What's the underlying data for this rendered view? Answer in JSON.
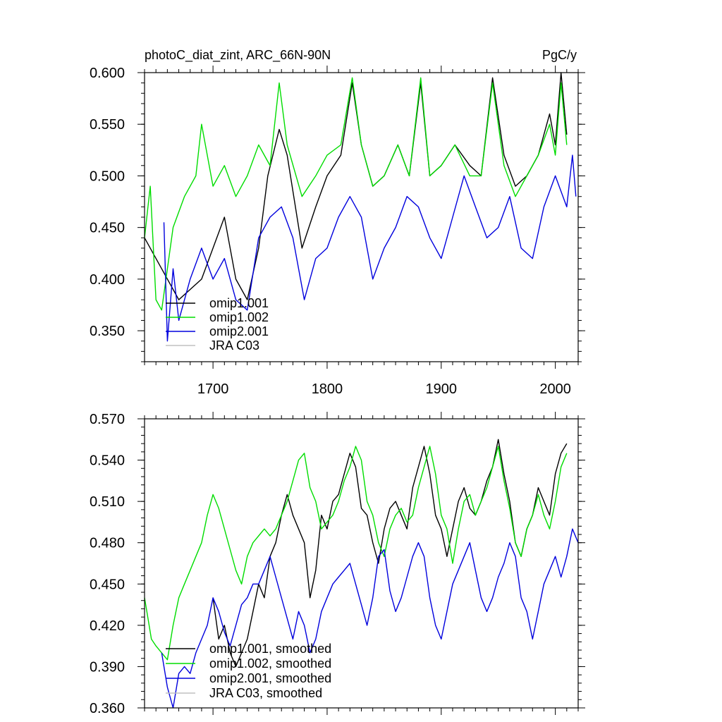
{
  "chart_data": [
    {
      "type": "line",
      "title": "photoC_diat_zint, ARC_66N-90N",
      "units": "PgC/y",
      "xlabel": "",
      "ylabel": "",
      "xlim": [
        1640,
        2020
      ],
      "ylim": [
        0.32,
        0.6
      ],
      "xticks": [
        1700,
        1800,
        1900,
        2000
      ],
      "xtick_labels": [
        "1700",
        "1800",
        "1900",
        "2000"
      ],
      "yticks": [
        0.35,
        0.4,
        0.45,
        0.5,
        0.55,
        0.6
      ],
      "ytick_labels": [
        "0.350",
        "0.400",
        "0.450",
        "0.500",
        "0.550",
        "0.600"
      ],
      "legend_position": "bottom-left",
      "series": [
        {
          "name": "omip1.001",
          "color": "#000000",
          "x": [
            1640,
            1655,
            1670,
            1690,
            1700,
            1710,
            1720,
            1730,
            1740,
            1748,
            1758,
            1765,
            1778,
            1790,
            1800,
            1812,
            1822,
            1830,
            1840,
            1850,
            1862,
            1872,
            1882,
            1890,
            1900,
            1912,
            1925,
            1935,
            1945,
            1955,
            1965,
            1975,
            1985,
            1995,
            2000,
            2005,
            2010
          ],
          "values": [
            0.44,
            0.41,
            0.38,
            0.4,
            0.43,
            0.46,
            0.4,
            0.38,
            0.43,
            0.5,
            0.545,
            0.52,
            0.43,
            0.47,
            0.5,
            0.52,
            0.59,
            0.53,
            0.49,
            0.5,
            0.53,
            0.5,
            0.59,
            0.5,
            0.51,
            0.53,
            0.51,
            0.5,
            0.595,
            0.52,
            0.49,
            0.5,
            0.52,
            0.56,
            0.53,
            0.6,
            0.54
          ]
        },
        {
          "name": "omip1.002",
          "color": "#00dd00",
          "x": [
            1640,
            1645,
            1650,
            1655,
            1665,
            1675,
            1685,
            1690,
            1700,
            1710,
            1720,
            1730,
            1740,
            1750,
            1758,
            1765,
            1778,
            1790,
            1800,
            1812,
            1822,
            1830,
            1840,
            1850,
            1862,
            1872,
            1882,
            1890,
            1900,
            1912,
            1925,
            1935,
            1945,
            1955,
            1965,
            1975,
            1985,
            1995,
            2000,
            2005,
            2010
          ],
          "values": [
            0.44,
            0.49,
            0.38,
            0.37,
            0.45,
            0.48,
            0.5,
            0.55,
            0.49,
            0.51,
            0.48,
            0.5,
            0.53,
            0.51,
            0.59,
            0.53,
            0.48,
            0.5,
            0.52,
            0.53,
            0.595,
            0.53,
            0.49,
            0.5,
            0.53,
            0.5,
            0.595,
            0.5,
            0.51,
            0.53,
            0.5,
            0.5,
            0.59,
            0.51,
            0.48,
            0.5,
            0.52,
            0.55,
            0.52,
            0.59,
            0.53
          ]
        },
        {
          "name": "omip2.001",
          "color": "#0000dd",
          "x": [
            1657,
            1660,
            1665,
            1670,
            1680,
            1690,
            1700,
            1710,
            1720,
            1730,
            1740,
            1750,
            1760,
            1770,
            1780,
            1790,
            1800,
            1810,
            1820,
            1830,
            1840,
            1850,
            1860,
            1870,
            1880,
            1890,
            1900,
            1910,
            1920,
            1930,
            1940,
            1950,
            1960,
            1970,
            1980,
            1990,
            2000,
            2010,
            2015,
            2018
          ],
          "values": [
            0.455,
            0.34,
            0.41,
            0.36,
            0.4,
            0.43,
            0.4,
            0.42,
            0.38,
            0.37,
            0.44,
            0.46,
            0.47,
            0.44,
            0.38,
            0.42,
            0.43,
            0.46,
            0.48,
            0.46,
            0.4,
            0.43,
            0.45,
            0.48,
            0.47,
            0.44,
            0.42,
            0.46,
            0.5,
            0.47,
            0.44,
            0.45,
            0.48,
            0.43,
            0.42,
            0.47,
            0.5,
            0.47,
            0.52,
            0.48
          ]
        },
        {
          "name": "JRA C03",
          "color": "#c0c0c0",
          "x": [],
          "values": []
        }
      ]
    },
    {
      "type": "line",
      "title": "",
      "xlabel": "",
      "ylabel": "",
      "xlim": [
        1640,
        2020
      ],
      "ylim": [
        0.36,
        0.57
      ],
      "xticks": [
        1700,
        1800,
        1900,
        2000
      ],
      "xtick_labels": [],
      "yticks": [
        0.36,
        0.39,
        0.42,
        0.45,
        0.48,
        0.51,
        0.54,
        0.57
      ],
      "ytick_labels": [
        "0.360",
        "0.390",
        "0.420",
        "0.450",
        "0.480",
        "0.510",
        "0.540",
        "0.570"
      ],
      "legend_position": "bottom-left",
      "series": [
        {
          "name": "omip1.001, smoothed",
          "color": "#000000",
          "x": [
            1700,
            1705,
            1710,
            1715,
            1720,
            1725,
            1730,
            1735,
            1740,
            1745,
            1750,
            1755,
            1760,
            1765,
            1770,
            1775,
            1780,
            1785,
            1790,
            1795,
            1800,
            1805,
            1810,
            1815,
            1820,
            1825,
            1830,
            1835,
            1840,
            1845,
            1850,
            1855,
            1860,
            1865,
            1870,
            1875,
            1880,
            1885,
            1890,
            1895,
            1900,
            1905,
            1910,
            1915,
            1920,
            1925,
            1930,
            1935,
            1940,
            1945,
            1950,
            1955,
            1960,
            1965,
            1970,
            1975,
            1980,
            1985,
            1990,
            1995,
            2000,
            2005,
            2010
          ],
          "values": [
            0.44,
            0.41,
            0.42,
            0.4,
            0.39,
            0.4,
            0.41,
            0.43,
            0.45,
            0.44,
            0.47,
            0.48,
            0.5,
            0.515,
            0.5,
            0.49,
            0.48,
            0.44,
            0.46,
            0.5,
            0.49,
            0.51,
            0.515,
            0.53,
            0.545,
            0.535,
            0.505,
            0.5,
            0.48,
            0.465,
            0.49,
            0.505,
            0.51,
            0.5,
            0.49,
            0.52,
            0.535,
            0.55,
            0.53,
            0.5,
            0.49,
            0.47,
            0.49,
            0.51,
            0.52,
            0.505,
            0.5,
            0.51,
            0.525,
            0.535,
            0.555,
            0.53,
            0.51,
            0.48,
            0.47,
            0.49,
            0.5,
            0.52,
            0.51,
            0.5,
            0.53,
            0.545,
            0.552
          ]
        },
        {
          "name": "omip1.002, smoothed",
          "color": "#00dd00",
          "x": [
            1640,
            1643,
            1646,
            1650,
            1655,
            1660,
            1665,
            1670,
            1675,
            1680,
            1685,
            1690,
            1695,
            1700,
            1705,
            1710,
            1715,
            1720,
            1725,
            1730,
            1735,
            1740,
            1745,
            1750,
            1755,
            1760,
            1765,
            1770,
            1775,
            1780,
            1785,
            1790,
            1795,
            1800,
            1805,
            1810,
            1815,
            1820,
            1825,
            1830,
            1835,
            1840,
            1845,
            1850,
            1855,
            1860,
            1865,
            1870,
            1875,
            1880,
            1885,
            1890,
            1895,
            1900,
            1905,
            1910,
            1915,
            1920,
            1925,
            1930,
            1935,
            1940,
            1945,
            1950,
            1955,
            1960,
            1965,
            1970,
            1975,
            1980,
            1985,
            1990,
            1995,
            2000,
            2005,
            2010
          ],
          "values": [
            0.44,
            0.425,
            0.41,
            0.405,
            0.4,
            0.395,
            0.42,
            0.44,
            0.45,
            0.46,
            0.47,
            0.48,
            0.5,
            0.515,
            0.505,
            0.49,
            0.475,
            0.46,
            0.45,
            0.47,
            0.48,
            0.485,
            0.49,
            0.485,
            0.49,
            0.5,
            0.51,
            0.525,
            0.54,
            0.545,
            0.52,
            0.51,
            0.49,
            0.495,
            0.5,
            0.51,
            0.525,
            0.535,
            0.55,
            0.54,
            0.51,
            0.5,
            0.48,
            0.47,
            0.49,
            0.5,
            0.505,
            0.495,
            0.5,
            0.52,
            0.535,
            0.55,
            0.53,
            0.5,
            0.49,
            0.465,
            0.49,
            0.51,
            0.515,
            0.5,
            0.51,
            0.52,
            0.535,
            0.55,
            0.525,
            0.505,
            0.48,
            0.47,
            0.49,
            0.5,
            0.515,
            0.5,
            0.49,
            0.51,
            0.535,
            0.545
          ]
        },
        {
          "name": "omip2.001, smoothed",
          "color": "#0000dd",
          "x": [
            1655,
            1660,
            1665,
            1670,
            1675,
            1680,
            1685,
            1690,
            1695,
            1700,
            1705,
            1710,
            1715,
            1720,
            1725,
            1730,
            1735,
            1740,
            1745,
            1750,
            1755,
            1760,
            1765,
            1770,
            1775,
            1780,
            1785,
            1790,
            1795,
            1800,
            1805,
            1810,
            1815,
            1820,
            1825,
            1830,
            1835,
            1840,
            1845,
            1850,
            1855,
            1860,
            1865,
            1870,
            1875,
            1880,
            1885,
            1890,
            1895,
            1900,
            1905,
            1910,
            1915,
            1920,
            1925,
            1930,
            1935,
            1940,
            1945,
            1950,
            1955,
            1960,
            1965,
            1970,
            1975,
            1980,
            1985,
            1990,
            1995,
            2000,
            2005,
            2010,
            2015,
            2020
          ],
          "values": [
            0.4,
            0.375,
            0.36,
            0.385,
            0.39,
            0.385,
            0.4,
            0.41,
            0.42,
            0.44,
            0.43,
            0.415,
            0.405,
            0.42,
            0.435,
            0.44,
            0.45,
            0.45,
            0.46,
            0.47,
            0.455,
            0.44,
            0.425,
            0.41,
            0.43,
            0.42,
            0.4,
            0.41,
            0.43,
            0.44,
            0.45,
            0.455,
            0.46,
            0.465,
            0.45,
            0.435,
            0.42,
            0.44,
            0.47,
            0.475,
            0.445,
            0.43,
            0.44,
            0.455,
            0.47,
            0.48,
            0.47,
            0.44,
            0.42,
            0.41,
            0.43,
            0.45,
            0.46,
            0.47,
            0.48,
            0.46,
            0.44,
            0.43,
            0.44,
            0.455,
            0.465,
            0.48,
            0.47,
            0.44,
            0.43,
            0.41,
            0.43,
            0.45,
            0.46,
            0.47,
            0.455,
            0.47,
            0.49,
            0.48
          ]
        },
        {
          "name": "JRA C03, smoothed",
          "color": "#c0c0c0",
          "x": [],
          "values": []
        }
      ]
    }
  ]
}
